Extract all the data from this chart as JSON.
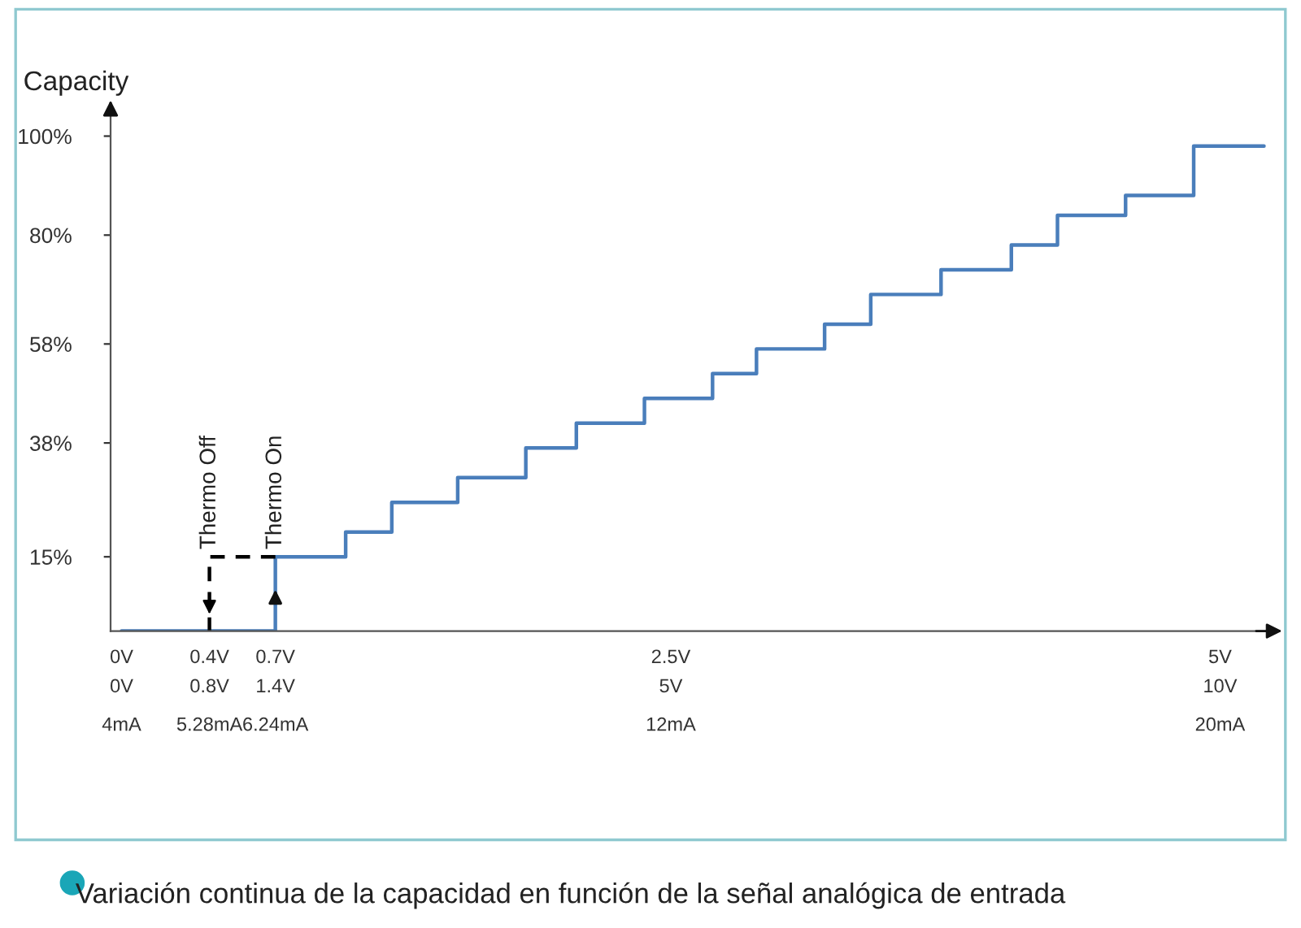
{
  "chart_data": {
    "type": "step",
    "ylabel": "Capacity",
    "series": [
      {
        "color": "#4a7ebb",
        "x": [
          0,
          0.7,
          1.02,
          1.23,
          1.53,
          1.84,
          2.07,
          2.38,
          2.69,
          2.89,
          3.2,
          3.41,
          3.73,
          4.05,
          4.26,
          4.57,
          4.88,
          5.2
        ],
        "values": [
          0,
          15,
          20,
          26,
          31,
          37,
          42,
          47,
          52,
          57,
          62,
          68,
          73,
          78,
          84,
          88,
          98,
          98
        ]
      },
      {
        "type": "line",
        "color": "#000000",
        "line_style": "dashed",
        "x": [
          0.7,
          0.4,
          0.4
        ],
        "values": [
          15,
          15,
          0
        ]
      }
    ],
    "xlim": [
      -0.05,
      5.25
    ],
    "ylim": [
      0,
      105
    ],
    "xticks": [
      {
        "value": 0,
        "label": "0V"
      },
      {
        "value": 0.4,
        "label": "0.4V"
      },
      {
        "value": 0.7,
        "label": "0.7V"
      },
      {
        "value": 2.5,
        "label": "2.5V"
      },
      {
        "value": 5,
        "label": "5V"
      }
    ],
    "x2lim": [
      3.84,
      20.8
    ],
    "x2ticks": [
      {
        "value": 4,
        "label": "4mA"
      },
      {
        "value": 5.28,
        "label": "5.28mA"
      },
      {
        "value": 6.24,
        "label": "6.24mA"
      },
      {
        "value": 12,
        "label": "12mA"
      },
      {
        "value": 20,
        "label": "20mA"
      }
    ],
    "yticks": [
      {
        "value": 15,
        "label": "15%"
      },
      {
        "value": 38,
        "label": "38%"
      },
      {
        "value": 58,
        "label": "58%"
      },
      {
        "value": 80,
        "label": "80%"
      },
      {
        "value": 100,
        "label": "100%"
      }
    ],
    "grid": false,
    "annotations": [
      {
        "text": "Thermo Off",
        "x": 0.4,
        "y": 15
      },
      {
        "text": "Thermo On",
        "x": 0.7,
        "y": 15
      },
      "0V",
      "0.8V",
      "1.4V",
      "5V",
      "10V",
      "Variación continua de la capacidad en función de la señal analógica de entrada"
    ]
  }
}
